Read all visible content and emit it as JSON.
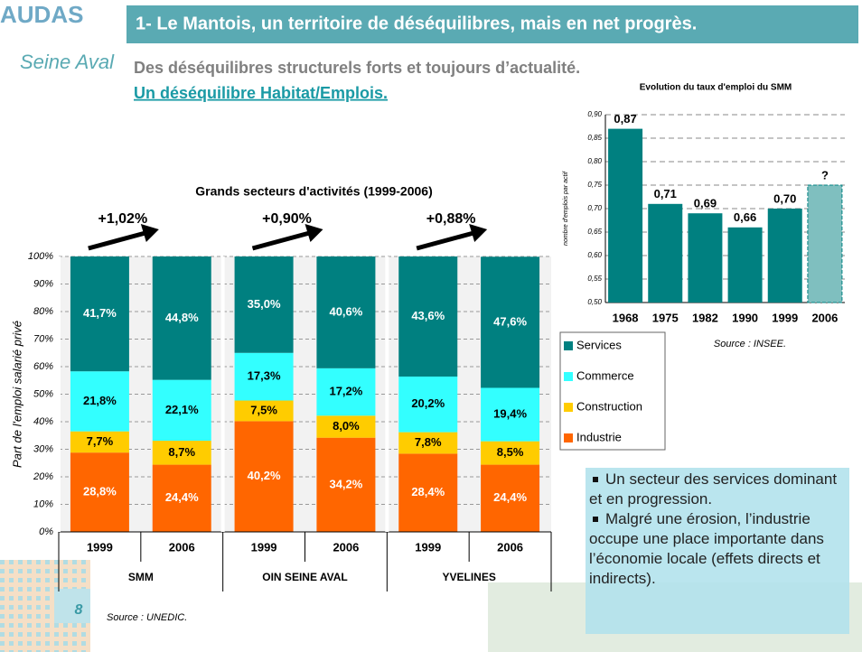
{
  "logo": {
    "top": "AUDAS",
    "bottom": "Seine Aval"
  },
  "title": "1- Le Mantois, un territoire de déséquilibres, mais en net progrès.",
  "subtitle": "Des déséquilibres structurels forts et toujours d’actualité.",
  "subtitle_link": "Un déséquilibre Habitat/Emplois.",
  "page_number": "8",
  "bullets": [
    "Un secteur des services dominant et en progression.",
    "Malgré une érosion, l’industrie occupe une place importante dans l’économie locale (effets directs et indirects)."
  ],
  "chart_data": [
    {
      "type": "stacked_bar",
      "title": "Grands secteurs d'activités (1999-2006)",
      "y_label": "Part de l'emploi salarié privé",
      "categories": [
        "1999",
        "2006",
        "1999",
        "2006",
        "1999",
        "2006"
      ],
      "groups": [
        "SMM",
        "OIN SEINE AVAL",
        "YVELINES"
      ],
      "annotations": [
        "+1,02%",
        "+0,90%",
        "+0,88%"
      ],
      "series": [
        {
          "name": "Industrie",
          "color": "#ff6600",
          "values": [
            28.8,
            24.4,
            40.2,
            34.2,
            28.4,
            24.4
          ],
          "value_labels": [
            "28,8%",
            "24,4%",
            "40,2%",
            "34,2%",
            "28,4%",
            "24,4%"
          ]
        },
        {
          "name": "Construction",
          "color": "#ffcc00",
          "values": [
            7.7,
            8.7,
            7.5,
            8.0,
            7.8,
            8.5
          ],
          "value_labels": [
            "7,7%",
            "8,7%",
            "7,5%",
            "8,0%",
            "7,8%",
            "8,5%"
          ]
        },
        {
          "name": "Commerce",
          "color": "#33ffff",
          "values": [
            21.8,
            22.1,
            17.3,
            17.2,
            20.2,
            19.4
          ],
          "value_labels": [
            "21,8%",
            "22,1%",
            "17,3%",
            "17,2%",
            "20,2%",
            "19,4%"
          ]
        },
        {
          "name": "Services",
          "color": "#008080",
          "values": [
            41.7,
            44.8,
            35.0,
            40.6,
            43.6,
            47.6
          ],
          "value_labels": [
            "41,7%",
            "44,8%",
            "35,0%",
            "40,6%",
            "43,6%",
            "47,6%"
          ]
        }
      ],
      "ylim": [
        0,
        100
      ],
      "yticks": [
        {
          "value": 0,
          "label": "0%"
        },
        {
          "value": 10,
          "label": "10%"
        },
        {
          "value": 20,
          "label": "20%"
        },
        {
          "value": 30,
          "label": "30%"
        },
        {
          "value": 40,
          "label": "40%"
        },
        {
          "value": 50,
          "label": "50%"
        },
        {
          "value": 60,
          "label": "60%"
        },
        {
          "value": 70,
          "label": "70%"
        },
        {
          "value": 80,
          "label": "80%"
        },
        {
          "value": 90,
          "label": "90%"
        },
        {
          "value": 100,
          "label": "100%"
        }
      ],
      "grid": true,
      "source": "Source : UNEDIC."
    },
    {
      "type": "bar",
      "title": "Evolution du taux d'emploi du SMM",
      "y_label": "nombre d'emplois par actif",
      "categories": [
        "1968",
        "1975",
        "1982",
        "1990",
        "1999",
        "2006"
      ],
      "values": [
        0.87,
        0.71,
        0.69,
        0.66,
        0.7,
        0.75
      ],
      "value_labels": [
        "0,87",
        "0,71",
        "0,69",
        "0,66",
        "0,70",
        "?"
      ],
      "colors": [
        "#008080",
        "#008080",
        "#008080",
        "#008080",
        "#008080",
        "#7fbfbf"
      ],
      "ylim": [
        0.5,
        0.9
      ],
      "yticks": [
        {
          "value": 0.5,
          "label": "0,50"
        },
        {
          "value": 0.55,
          "label": "0,55"
        },
        {
          "value": 0.6,
          "label": "0,60"
        },
        {
          "value": 0.65,
          "label": "0,65"
        },
        {
          "value": 0.7,
          "label": "0,70"
        },
        {
          "value": 0.75,
          "label": "0,75"
        },
        {
          "value": 0.8,
          "label": "0,80"
        },
        {
          "value": 0.85,
          "label": "0,85"
        },
        {
          "value": 0.9,
          "label": "0,90"
        }
      ],
      "grid": true,
      "source": "Source : INSEE."
    }
  ]
}
